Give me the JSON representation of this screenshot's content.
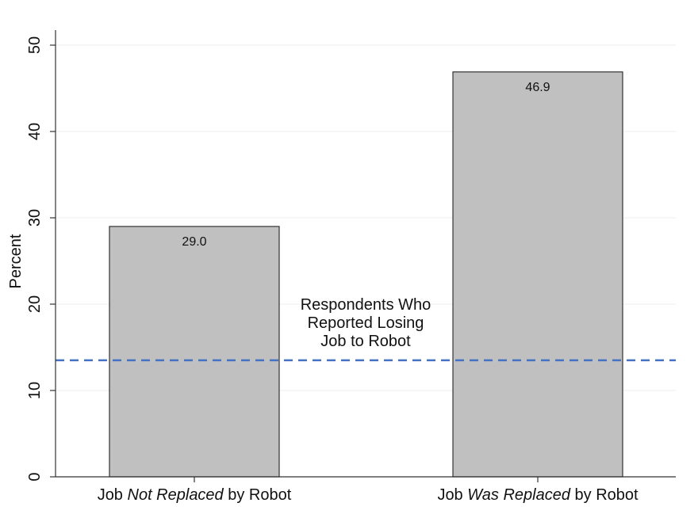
{
  "chart_data": {
    "type": "bar",
    "categories": [
      {
        "parts": [
          {
            "text": "Job ",
            "italic": false
          },
          {
            "text": "Not Replaced",
            "italic": true
          },
          {
            "text": " by Robot",
            "italic": false
          }
        ]
      },
      {
        "parts": [
          {
            "text": "Job ",
            "italic": false
          },
          {
            "text": "Was Replaced",
            "italic": true
          },
          {
            "text": " by Robot",
            "italic": false
          }
        ]
      }
    ],
    "values": [
      29.0,
      46.9
    ],
    "data_labels": [
      "29.0",
      "46.9"
    ],
    "ylabel": "Percent",
    "xlabel": "",
    "title": "",
    "ylim": [
      0,
      50
    ],
    "yticks": [
      0,
      10,
      20,
      30,
      40,
      50
    ],
    "grid": true,
    "reference_line": {
      "value": 13.5,
      "style": "dashed",
      "label_lines": [
        "Respondents Who",
        "Reported Losing",
        "Job to Robot"
      ]
    },
    "colors": {
      "bar_fill": "#c0c0c0",
      "bar_stroke": "#333333",
      "reference_line": "#4472c4",
      "grid": "#eeeeee",
      "axis": "#333333"
    }
  }
}
